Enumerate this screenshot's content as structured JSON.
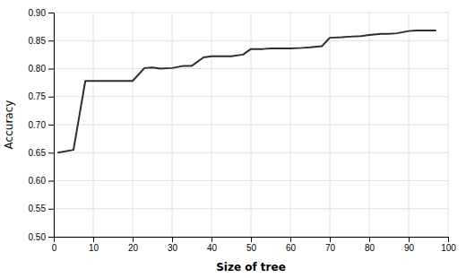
{
  "chart_data": {
    "type": "line",
    "x": [
      1,
      5,
      8,
      10,
      15,
      20,
      23,
      25,
      27,
      30,
      33,
      35,
      38,
      40,
      42,
      45,
      48,
      50,
      53,
      55,
      58,
      60,
      63,
      65,
      68,
      70,
      73,
      75,
      78,
      80,
      83,
      85,
      87,
      90,
      92,
      95,
      97
    ],
    "values": [
      0.65,
      0.655,
      0.778,
      0.778,
      0.778,
      0.778,
      0.801,
      0.802,
      0.8,
      0.801,
      0.805,
      0.805,
      0.82,
      0.822,
      0.822,
      0.822,
      0.825,
      0.835,
      0.835,
      0.836,
      0.836,
      0.836,
      0.837,
      0.838,
      0.84,
      0.855,
      0.856,
      0.857,
      0.858,
      0.86,
      0.862,
      0.862,
      0.863,
      0.867,
      0.868,
      0.868,
      0.868
    ],
    "color": "#2d2d2d",
    "xlabel": "Size of tree",
    "ylabel": "Accuracy",
    "xlim": [
      0,
      100
    ],
    "ylim": [
      0.5,
      0.9
    ],
    "xticks": [
      0,
      10,
      20,
      30,
      40,
      50,
      60,
      70,
      80,
      90,
      100
    ],
    "yticks": [
      {
        "value": 0.5,
        "label": "0.50"
      },
      0.55,
      {
        "value": 0.6,
        "label": "0.60"
      },
      0.65,
      {
        "value": 0.7,
        "label": "0.70"
      },
      0.75,
      {
        "value": 0.8,
        "label": "0.80"
      },
      0.85,
      {
        "value": 0.9,
        "label": "0.90"
      }
    ],
    "grid": true
  }
}
